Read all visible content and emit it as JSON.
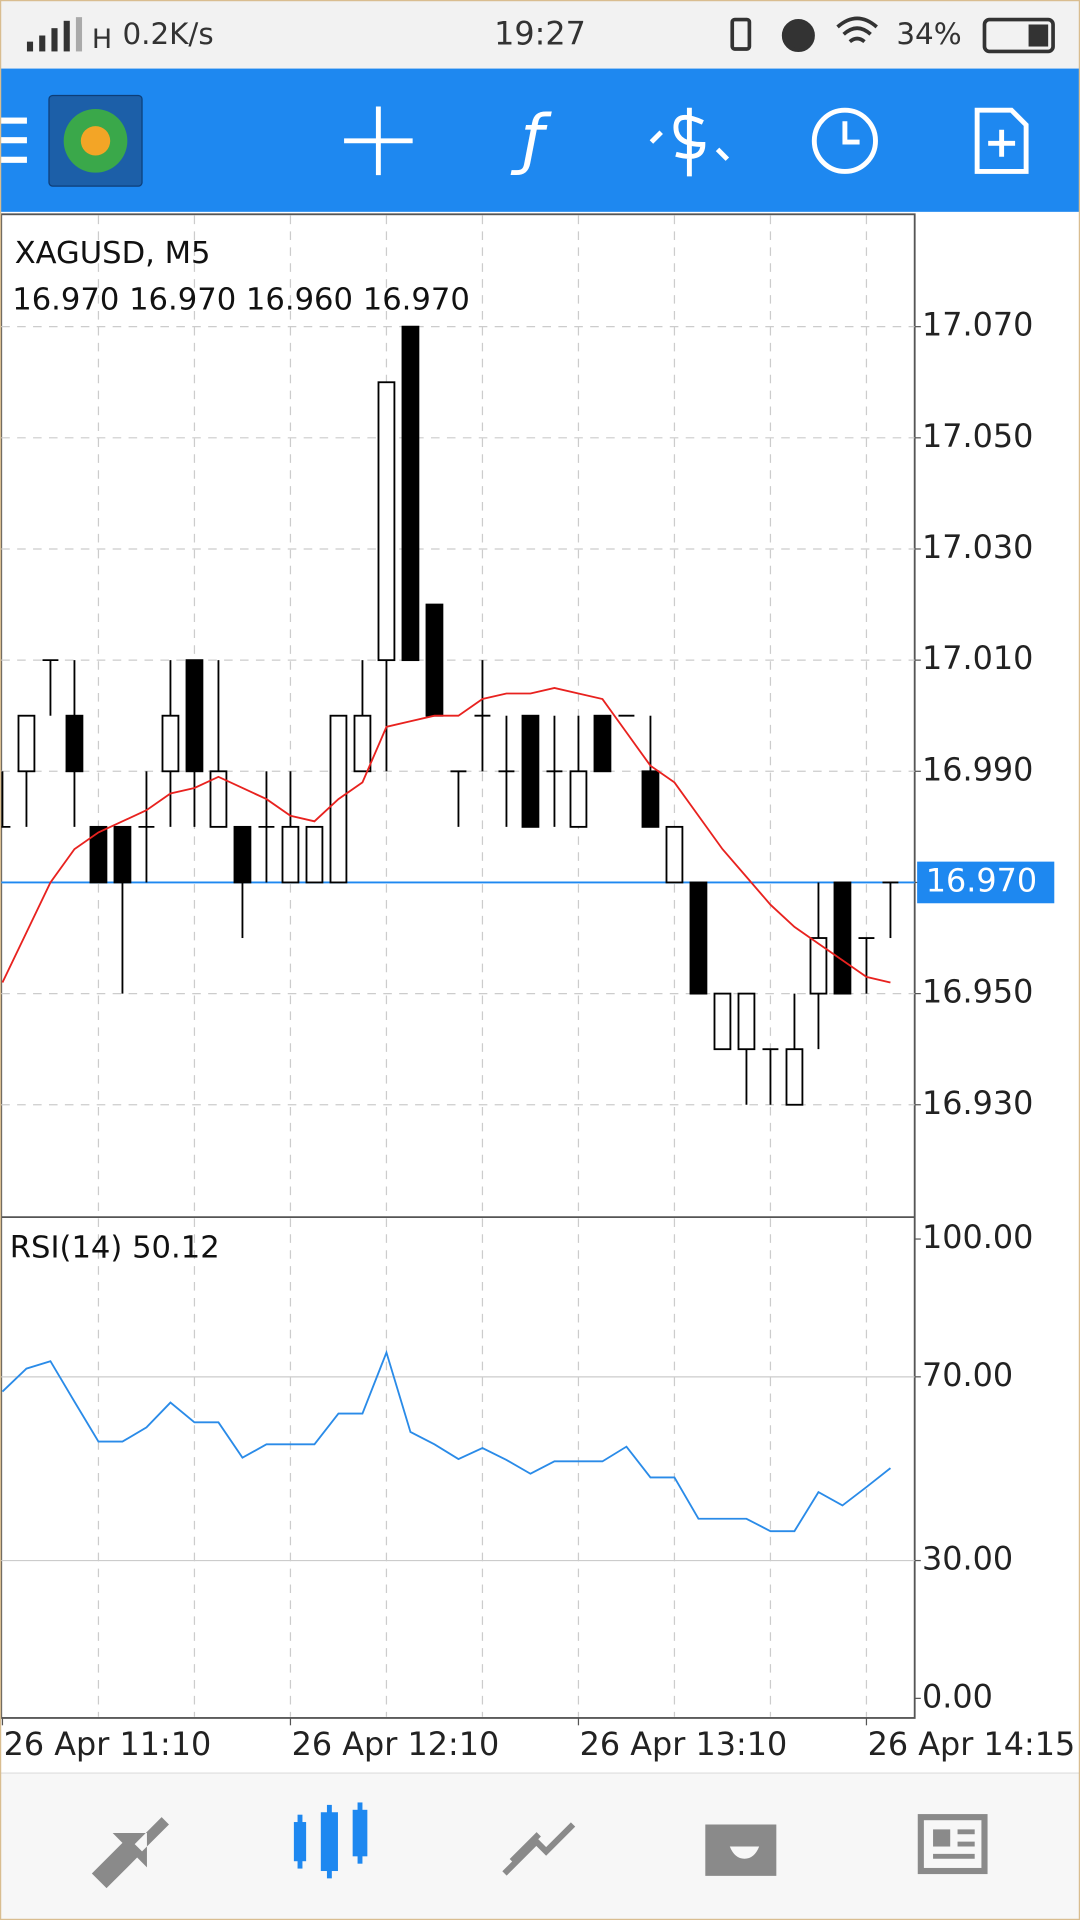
{
  "status_bar": {
    "network": "H",
    "speed": "0.2K/s",
    "time": "19:27",
    "battery": "34%"
  },
  "chart_data": [
    {
      "type": "candlestick",
      "title": "XAGUSD, M5",
      "subtitle": "16.970 16.970 16.960 16.970",
      "categories": [
        null,
        null,
        null,
        null,
        null,
        null,
        null,
        null,
        null,
        null,
        null,
        null,
        null,
        null,
        null,
        null,
        null,
        null,
        null,
        null,
        null,
        null,
        null,
        null,
        null,
        null,
        null,
        null,
        null,
        null,
        null,
        null,
        null,
        null,
        null,
        null,
        null,
        null
      ],
      "open": [
        16.98,
        16.99,
        17.01,
        17.0,
        16.98,
        16.98,
        16.98,
        16.99,
        17.01,
        16.98,
        16.98,
        16.98,
        16.97,
        16.97,
        16.97,
        16.99,
        17.01,
        17.07,
        17.02,
        16.99,
        17.0,
        16.99,
        17.0,
        16.99,
        16.98,
        17.0,
        17.0,
        16.99,
        16.97,
        16.97,
        16.94,
        16.94,
        16.94,
        16.93,
        16.95,
        16.97,
        16.96,
        16.97
      ],
      "high": [
        16.99,
        17.0,
        17.01,
        17.01,
        16.98,
        16.98,
        16.99,
        17.01,
        17.01,
        17.01,
        16.98,
        16.99,
        16.99,
        16.98,
        17.0,
        17.01,
        17.06,
        17.07,
        17.02,
        16.99,
        17.01,
        17.0,
        17.0,
        17.0,
        17.0,
        17.0,
        17.0,
        17.0,
        16.98,
        16.97,
        16.95,
        16.95,
        16.94,
        16.95,
        16.97,
        16.97,
        16.96,
        16.97
      ],
      "low": [
        16.98,
        16.98,
        17.0,
        16.98,
        16.97,
        16.95,
        16.97,
        16.98,
        16.98,
        16.98,
        16.96,
        16.97,
        16.97,
        16.97,
        16.97,
        16.99,
        16.99,
        17.01,
        17.0,
        16.98,
        16.99,
        16.98,
        16.98,
        16.98,
        16.98,
        16.99,
        17.0,
        16.98,
        16.97,
        16.95,
        16.94,
        16.93,
        16.93,
        16.93,
        16.94,
        16.95,
        16.95,
        16.96
      ],
      "close": [
        16.98,
        17.0,
        17.01,
        16.99,
        16.97,
        16.97,
        16.98,
        17.0,
        16.99,
        16.99,
        16.97,
        16.98,
        16.98,
        16.98,
        17.0,
        17.0,
        17.06,
        17.01,
        17.0,
        16.99,
        17.0,
        16.99,
        16.98,
        16.99,
        16.99,
        16.99,
        17.0,
        16.98,
        16.98,
        16.95,
        16.95,
        16.95,
        16.94,
        16.94,
        16.96,
        16.95,
        16.96,
        16.97
      ],
      "ma_color": "#e8221f",
      "ma_values": [
        16.952,
        16.961,
        16.97,
        16.976,
        16.979,
        16.981,
        16.983,
        16.986,
        16.987,
        16.989,
        16.987,
        16.985,
        16.982,
        16.981,
        16.985,
        16.988,
        16.998,
        16.999,
        17.0,
        17.0,
        17.003,
        17.004,
        17.004,
        17.005,
        17.004,
        17.003,
        16.997,
        16.991,
        16.988,
        16.982,
        16.976,
        16.971,
        16.966,
        16.962,
        16.959,
        16.956,
        16.953,
        16.952
      ],
      "ylim": [
        16.91,
        17.09
      ],
      "yticks": [
        {
          "value": 16.93,
          "label": "16.930"
        },
        {
          "value": 16.95,
          "label": "16.950"
        },
        {
          "value": 16.97,
          "label": "16.970"
        },
        {
          "value": 16.99,
          "label": "16.990"
        },
        {
          "value": 17.01,
          "label": "17.010"
        },
        {
          "value": 17.03,
          "label": "17.030"
        },
        {
          "value": 17.05,
          "label": "17.050"
        },
        {
          "value": 17.07,
          "label": "17.070"
        }
      ],
      "current_price": {
        "value": 16.97,
        "label": "16.970",
        "color": "#1e88f0"
      },
      "xticks": [
        {
          "value": 0,
          "label": "26 Apr 11:10"
        },
        {
          "value": 12,
          "label": "26 Apr 12:10"
        },
        {
          "value": 24,
          "label": "26 Apr 13:10"
        },
        {
          "value": 36,
          "label": "26 Apr 14:15"
        }
      ],
      "grid": true
    },
    {
      "type": "line",
      "title": "RSI(14) 50.12",
      "color": "#2a8be8",
      "values": [
        66.8,
        71.8,
        73.4,
        64.6,
        55.9,
        55.9,
        59.0,
        64.4,
        60.1,
        60.1,
        52.4,
        55.3,
        55.3,
        55.3,
        62.0,
        62.0,
        75.3,
        58.0,
        55.3,
        52.1,
        54.5,
        51.9,
        48.9,
        51.6,
        51.6,
        51.6,
        54.8,
        48.1,
        48.1,
        39.1,
        39.1,
        39.1,
        36.4,
        36.4,
        44.9,
        42.0,
        46.0,
        50.12
      ],
      "ylim": [
        -4,
        104.5
      ],
      "yticks": [
        {
          "value": 0,
          "label": "0.00"
        },
        {
          "value": 30,
          "label": "30.00"
        },
        {
          "value": 70,
          "label": "70.00"
        },
        {
          "value": 100,
          "label": "100.00"
        }
      ],
      "grid": [
        30,
        70
      ]
    }
  ]
}
